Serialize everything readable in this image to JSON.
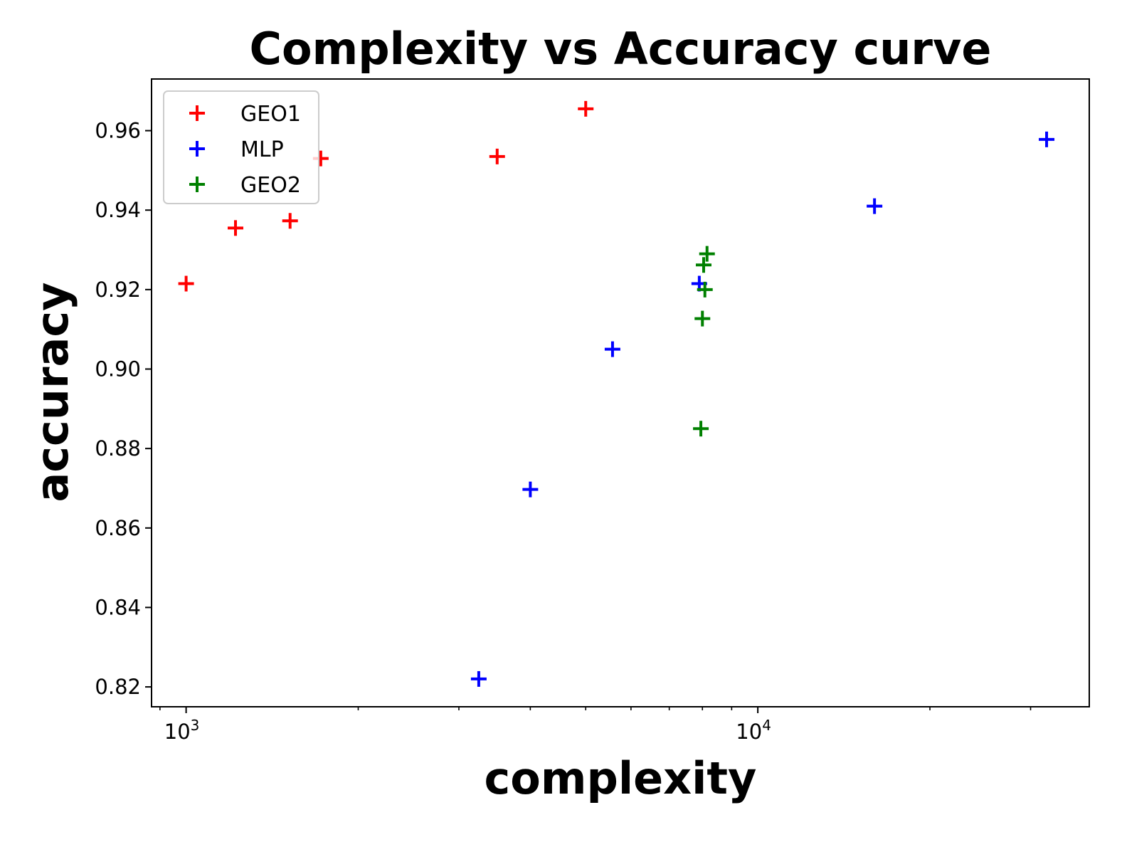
{
  "chart_data": {
    "type": "scatter",
    "title": "Complexity vs Accuracy curve",
    "xlabel": "complexity",
    "ylabel": "accuracy",
    "xscale": "log",
    "xlim": [
      870,
      38000
    ],
    "ylim": [
      0.815,
      0.973
    ],
    "grid": false,
    "legend_position": "top-left",
    "marker": "plus",
    "x_ticks": [
      {
        "value": 1000,
        "base": "10",
        "exp": "3"
      },
      {
        "value": 10000,
        "base": "10",
        "exp": "4"
      }
    ],
    "y_ticks": [
      {
        "value": 0.82,
        "label": "0.82"
      },
      {
        "value": 0.84,
        "label": "0.84"
      },
      {
        "value": 0.86,
        "label": "0.86"
      },
      {
        "value": 0.88,
        "label": "0.88"
      },
      {
        "value": 0.9,
        "label": "0.90"
      },
      {
        "value": 0.92,
        "label": "0.92"
      },
      {
        "value": 0.94,
        "label": "0.94"
      },
      {
        "value": 0.96,
        "label": "0.96"
      }
    ],
    "series": [
      {
        "name": "GEO1",
        "color": "#ff0000",
        "points": [
          {
            "x": 1000,
            "y": 0.9215
          },
          {
            "x": 1220,
            "y": 0.9355
          },
          {
            "x": 1520,
            "y": 0.9373
          },
          {
            "x": 1720,
            "y": 0.953
          },
          {
            "x": 3500,
            "y": 0.9535
          },
          {
            "x": 5000,
            "y": 0.9655
          }
        ]
      },
      {
        "name": "MLP",
        "color": "#0000ff",
        "points": [
          {
            "x": 3250,
            "y": 0.822
          },
          {
            "x": 4000,
            "y": 0.8697
          },
          {
            "x": 5570,
            "y": 0.905
          },
          {
            "x": 7900,
            "y": 0.9215
          },
          {
            "x": 16000,
            "y": 0.941
          },
          {
            "x": 32000,
            "y": 0.9578
          }
        ]
      },
      {
        "name": "GEO2",
        "color": "#008000",
        "points": [
          {
            "x": 7950,
            "y": 0.885
          },
          {
            "x": 8000,
            "y": 0.9127
          },
          {
            "x": 8080,
            "y": 0.92
          },
          {
            "x": 8040,
            "y": 0.9262
          },
          {
            "x": 8150,
            "y": 0.929
          }
        ]
      }
    ]
  }
}
